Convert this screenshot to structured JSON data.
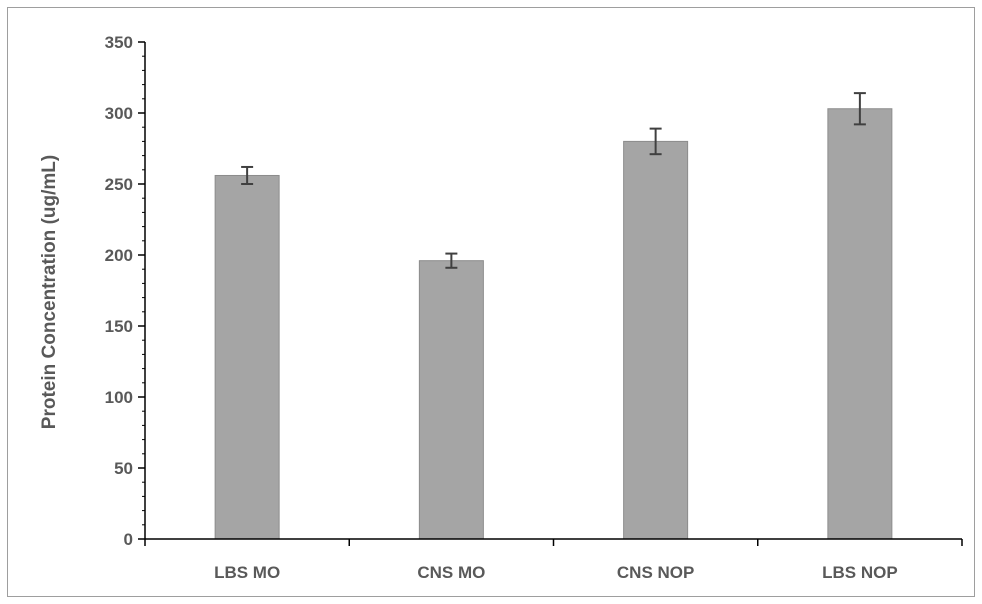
{
  "chart_data": {
    "type": "bar",
    "title": "",
    "xlabel": "",
    "ylabel": "Protein Concentration (ug/mL)",
    "categories": [
      "LBS MO",
      "CNS MO",
      "CNS NOP",
      "LBS NOP"
    ],
    "values": [
      256,
      196,
      280,
      303
    ],
    "error": [
      6,
      5,
      9,
      11
    ],
    "ylim": [
      0,
      350
    ],
    "yticks": [
      0,
      50,
      100,
      150,
      200,
      250,
      300,
      350
    ],
    "ytick_labels": [
      "0",
      "50",
      "100",
      "150",
      "200",
      "250",
      "300",
      "350"
    ],
    "grid": false,
    "legend": "none",
    "bar_color": "#a5a5a5",
    "axis_color": "#000000",
    "text_color": "#595959"
  }
}
